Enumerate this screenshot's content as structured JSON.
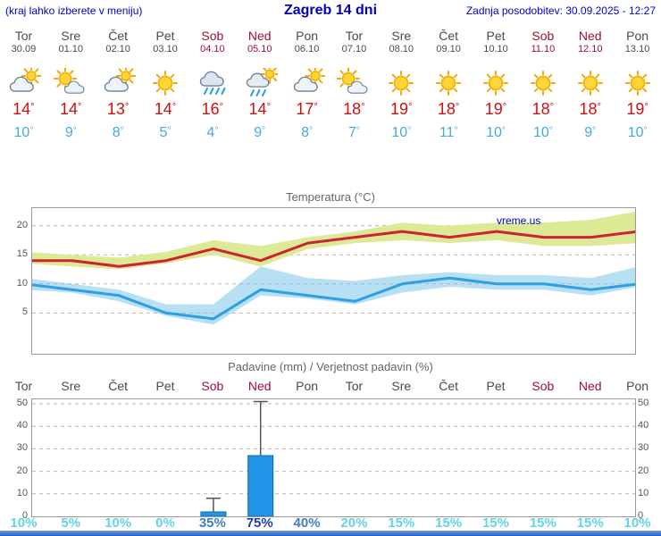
{
  "header": {
    "hint": "(kraj lahko izberete v meniju)",
    "title": "Zagreb 14 dni",
    "updated": "Zadnja posodobitev: 30.09.2025 - 12:27"
  },
  "watermark": "vreme.us",
  "colors": {
    "header_blue": "#0000cc",
    "weekend_red": "#a01030",
    "high_temp_red": "#cc1111",
    "low_temp_blue": "#45aadf",
    "max_line": "#cc2233",
    "min_line": "#2e9fe0",
    "max_band": "#dcea96",
    "min_band": "#6fc2ec",
    "bar_blue": "#2196e8",
    "prob_low": "#62d3e6",
    "prob_med": "#417fc0",
    "prob_high": "#1b3fae"
  },
  "forecast": {
    "days": [
      {
        "name": "Tor",
        "date": "30.09",
        "weekend": false,
        "icon": "cloud-sun-icon",
        "high": 14,
        "low": 10
      },
      {
        "name": "Sre",
        "date": "01.10",
        "weekend": false,
        "icon": "sun-cloud-icon",
        "high": 14,
        "low": 9
      },
      {
        "name": "Čet",
        "date": "02.10",
        "weekend": false,
        "icon": "cloud-sun-icon",
        "high": 13,
        "low": 8
      },
      {
        "name": "Pet",
        "date": "03.10",
        "weekend": false,
        "icon": "sun-icon",
        "high": 14,
        "low": 5
      },
      {
        "name": "Sob",
        "date": "04.10",
        "weekend": true,
        "icon": "rain-icon",
        "high": 16,
        "low": 4
      },
      {
        "name": "Ned",
        "date": "05.10",
        "weekend": true,
        "icon": "rain-sun-icon",
        "high": 14,
        "low": 9
      },
      {
        "name": "Pon",
        "date": "06.10",
        "weekend": false,
        "icon": "cloud-sun-icon",
        "high": 17,
        "low": 8
      },
      {
        "name": "Tor",
        "date": "07.10",
        "weekend": false,
        "icon": "sun-cloud-icon",
        "high": 18,
        "low": 7
      },
      {
        "name": "Sre",
        "date": "08.10",
        "weekend": false,
        "icon": "sun-icon",
        "high": 19,
        "low": 10
      },
      {
        "name": "Čet",
        "date": "09.10",
        "weekend": false,
        "icon": "sun-icon",
        "high": 18,
        "low": 11
      },
      {
        "name": "Pet",
        "date": "10.10",
        "weekend": false,
        "icon": "sun-icon",
        "high": 19,
        "low": 10
      },
      {
        "name": "Sob",
        "date": "11.10",
        "weekend": true,
        "icon": "sun-icon",
        "high": 18,
        "low": 10
      },
      {
        "name": "Ned",
        "date": "12.10",
        "weekend": true,
        "icon": "sun-icon",
        "high": 18,
        "low": 9
      },
      {
        "name": "Pon",
        "date": "13.10",
        "weekend": false,
        "icon": "sun-icon",
        "high": 19,
        "low": 10
      }
    ]
  },
  "chart_data": [
    {
      "type": "line",
      "title": "Temperatura (°C)",
      "categories": [
        "30.09",
        "01.10",
        "02.10",
        "03.10",
        "04.10",
        "05.10",
        "06.10",
        "07.10",
        "08.10",
        "09.10",
        "10.10",
        "11.10",
        "12.10",
        "13.10"
      ],
      "ylim": [
        -2,
        23
      ],
      "yticks": [
        5,
        10,
        15,
        20
      ],
      "grid": "dashed",
      "legend_position": "none",
      "series": [
        {
          "name": "max temperature (°C)",
          "color": "#cc2233",
          "values": [
            14,
            14,
            13,
            14,
            16,
            14,
            17,
            18,
            19,
            18,
            19,
            18,
            18,
            19
          ]
        },
        {
          "name": "min temperature (°C)",
          "color": "#2e9fe0",
          "values": [
            10,
            9,
            8,
            5,
            4,
            9,
            8,
            7,
            10,
            11,
            10,
            10,
            9,
            10
          ]
        }
      ],
      "bands": [
        {
          "name": "max temperature range",
          "color": "#dcea96",
          "opacity": 1,
          "upper": [
            15.5,
            15,
            14.5,
            15.5,
            17.5,
            16.5,
            18,
            19,
            20.5,
            20,
            20.5,
            20.5,
            21,
            22.5
          ],
          "lower": [
            13.5,
            13,
            12.5,
            13.5,
            15,
            13,
            16,
            17,
            17.5,
            17,
            17.5,
            16.5,
            16.5,
            17
          ]
        },
        {
          "name": "min temperature range",
          "color": "#6fc2ec",
          "opacity": 0.5,
          "upper": [
            11,
            10,
            9,
            6.5,
            6.5,
            13,
            11,
            10.5,
            11.5,
            12,
            11.5,
            11.5,
            11,
            13
          ],
          "lower": [
            9,
            8.5,
            7,
            4.5,
            3,
            8,
            7.5,
            6.5,
            8.5,
            9.5,
            9,
            9,
            8,
            9.5
          ]
        }
      ],
      "watermark": "vreme.us"
    },
    {
      "type": "bar",
      "title": "Padavine (mm) / Verjetnost padavin (%)",
      "categories": [
        "Tor",
        "Sre",
        "Čet",
        "Pet",
        "Sob",
        "Ned",
        "Pon",
        "Tor",
        "Sre",
        "Čet",
        "Pet",
        "Sob",
        "Ned",
        "Pon"
      ],
      "weekend_indices": [
        4,
        5,
        11,
        12
      ],
      "ylim": [
        0,
        52
      ],
      "yticks": [
        0,
        10,
        20,
        30,
        40,
        50
      ],
      "grid": "dashed",
      "series": [
        {
          "name": "precipitation (mm)",
          "color": "#2196e8",
          "values": [
            0,
            0,
            0,
            0,
            2,
            27,
            0,
            0,
            0,
            0,
            0,
            0,
            0,
            0
          ]
        },
        {
          "name": "precipitation max (mm)",
          "color": "#555555",
          "values": [
            0,
            0,
            0,
            0,
            8,
            51,
            0,
            0,
            0,
            0,
            0,
            0,
            0,
            0
          ]
        },
        {
          "name": "precipitation probability (%)",
          "values": [
            10,
            5,
            10,
            0,
            35,
            75,
            40,
            20,
            15,
            15,
            15,
            15,
            15,
            10
          ]
        }
      ]
    }
  ]
}
